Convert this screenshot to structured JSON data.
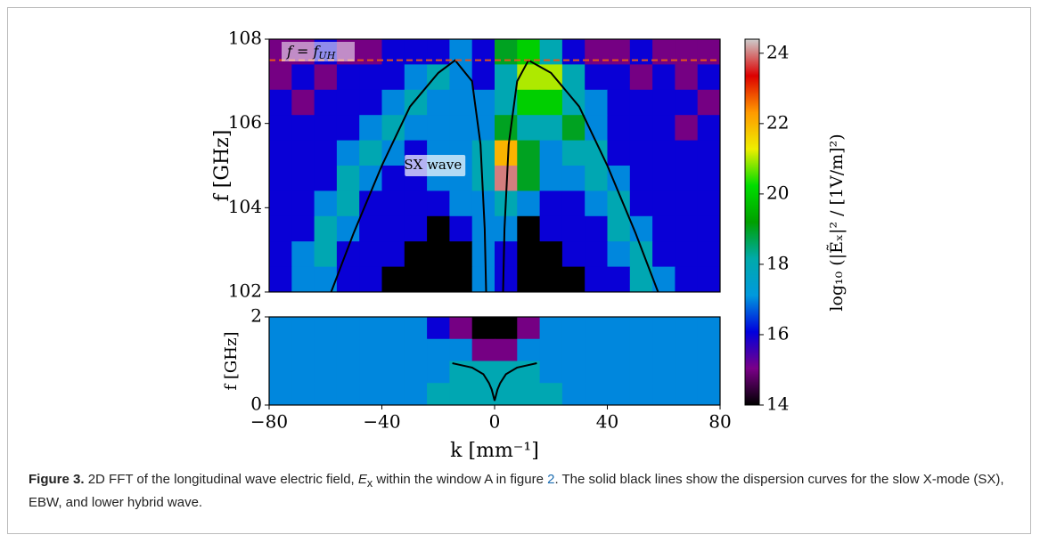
{
  "chart_data": [
    {
      "type": "heatmap",
      "ylabel": "f [GHz]",
      "xlim": [
        -80,
        80
      ],
      "ylim": [
        102,
        108
      ],
      "yticks": [
        102,
        104,
        106,
        108
      ],
      "values": [
        [
          15,
          15,
          16,
          15,
          15,
          16,
          16,
          16,
          17,
          16,
          19,
          20,
          18,
          16,
          15,
          15,
          16,
          15,
          15,
          15
        ],
        [
          15,
          16,
          15,
          16,
          16,
          16,
          17,
          18,
          17,
          16,
          18,
          21,
          21,
          18,
          16,
          16,
          15,
          16,
          15,
          16
        ],
        [
          16,
          15,
          16,
          16,
          16,
          17,
          18,
          17,
          17,
          17,
          18,
          20,
          20,
          18,
          17,
          16,
          16,
          16,
          16,
          15
        ],
        [
          16,
          16,
          16,
          16,
          17,
          18,
          17,
          17,
          17,
          17,
          19,
          18,
          18,
          19,
          17,
          16,
          16,
          16,
          15,
          16
        ],
        [
          16,
          16,
          16,
          17,
          18,
          17,
          16,
          17,
          17,
          18,
          22,
          19,
          17,
          18,
          18,
          16,
          16,
          16,
          16,
          16
        ],
        [
          16,
          16,
          16,
          18,
          17,
          16,
          16,
          17,
          17,
          18,
          24,
          19,
          17,
          17,
          18,
          17,
          16,
          16,
          16,
          16
        ],
        [
          16,
          16,
          17,
          18,
          16,
          16,
          16,
          16,
          17,
          17,
          18,
          17,
          16,
          16,
          17,
          18,
          16,
          16,
          16,
          16
        ],
        [
          16,
          16,
          18,
          17,
          16,
          16,
          16,
          14,
          16,
          17,
          17,
          14,
          16,
          16,
          16,
          18,
          17,
          16,
          16,
          16
        ],
        [
          16,
          17,
          18,
          16,
          16,
          16,
          14,
          14,
          14,
          17,
          16,
          14,
          14,
          16,
          16,
          17,
          18,
          16,
          16,
          16
        ],
        [
          16,
          17,
          17,
          16,
          16,
          14,
          14,
          14,
          14,
          17,
          16,
          14,
          14,
          14,
          16,
          16,
          18,
          17,
          16,
          16
        ]
      ],
      "lines": [
        {
          "color": "#000000",
          "x": [
            -58,
            -50,
            -40,
            -30,
            -20,
            -14,
            -8,
            -5,
            -3.5,
            -3
          ],
          "y": [
            102,
            103.4,
            105,
            106.4,
            107.2,
            107.5,
            107,
            105.5,
            103.5,
            102
          ]
        },
        {
          "color": "#000000",
          "x": [
            3,
            3.5,
            5,
            8,
            12,
            20,
            30,
            40,
            50,
            58
          ],
          "y": [
            102,
            103.5,
            105.5,
            107,
            107.5,
            107.2,
            106.4,
            105,
            103.4,
            102
          ]
        }
      ],
      "hline": {
        "value": 107.5,
        "color": "#e8541a",
        "label": "f = f",
        "label_sub": "UH"
      },
      "annotation": {
        "text": "SX wave",
        "x": -11,
        "y": 105
      }
    },
    {
      "type": "heatmap",
      "ylabel": "f [GHz]",
      "xlabel": "k [mm⁻¹]",
      "xlim": [
        -80,
        80
      ],
      "ylim": [
        0,
        2
      ],
      "xticks": [
        {
          "value": -80,
          "label": "−80"
        },
        {
          "value": -40,
          "label": "−40"
        },
        0,
        40,
        80
      ],
      "yticks": [
        0,
        2
      ],
      "values": [
        [
          17,
          17,
          17,
          17,
          17,
          17,
          17,
          16,
          15,
          14,
          14,
          15,
          17,
          17,
          17,
          17,
          17,
          17,
          17,
          17
        ],
        [
          17,
          17,
          17,
          17,
          17,
          17,
          17,
          17,
          17,
          15,
          15,
          17,
          17,
          17,
          17,
          17,
          17,
          17,
          17,
          17
        ],
        [
          17,
          17,
          17,
          17,
          17,
          17,
          17,
          17,
          18,
          18,
          18,
          18,
          17,
          17,
          17,
          17,
          17,
          17,
          17,
          17
        ],
        [
          17,
          17,
          17,
          17,
          17,
          17,
          17,
          18,
          18,
          18,
          18,
          18,
          18,
          17,
          17,
          17,
          17,
          17,
          17,
          17
        ]
      ],
      "lines": [
        {
          "color": "#000000",
          "x": [
            -15,
            -8,
            -4,
            -2,
            -1,
            0,
            1,
            2,
            4,
            8,
            15
          ],
          "y": [
            0.95,
            0.85,
            0.7,
            0.5,
            0.35,
            0.1,
            0.35,
            0.5,
            0.7,
            0.85,
            0.95
          ]
        }
      ]
    }
  ],
  "colorbar": {
    "label": "log₁₀ (|Ẽₓ|² / [1V/m]²)",
    "clim": [
      14,
      24.4
    ],
    "ticks": [
      14,
      16,
      18,
      20,
      22,
      24
    ],
    "colormap": [
      "#000000",
      "#7a0088",
      "#0000dd",
      "#0099dd",
      "#00aaaa",
      "#00a000",
      "#00dd00",
      "#eeee00",
      "#ff9900",
      "#dd0000",
      "#cccccc"
    ]
  },
  "caption": {
    "label": "Figure 3.",
    "text1": "2D FFT of the longitudinal wave electric field, ",
    "sym": "E",
    "sym_sub": "x",
    "text2": " within the window A in figure ",
    "ref": "2",
    "text3": ". The solid black lines show the dispersion curves for the slow X-mode (SX), EBW, and lower hybrid wave."
  }
}
